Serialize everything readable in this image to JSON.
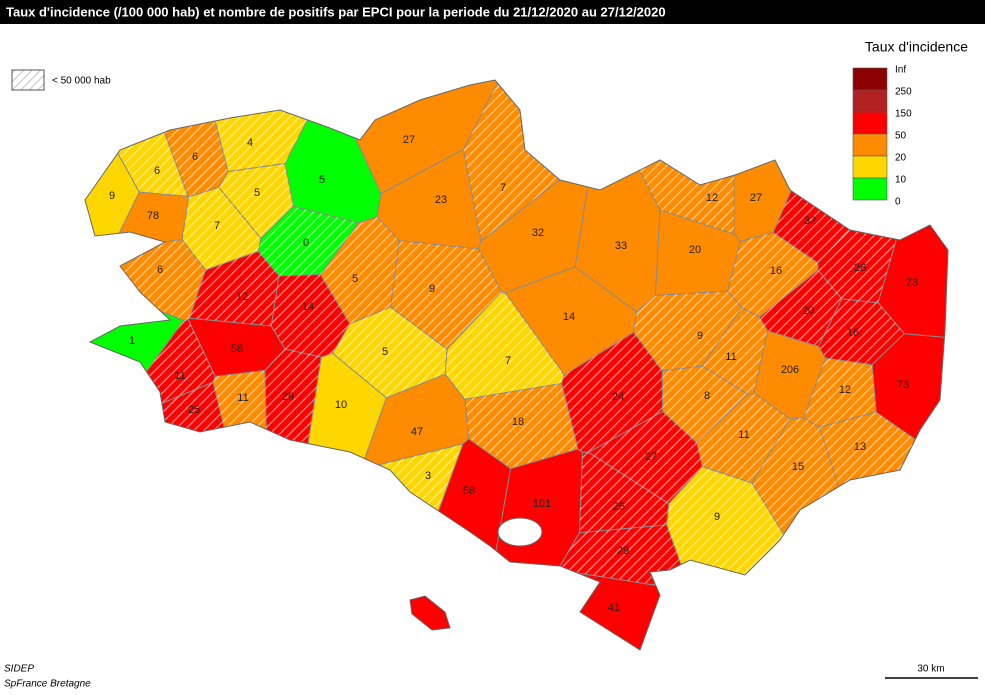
{
  "header": {
    "title": "Taux d'incidence (/100 000 hab) et nombre de positifs par EPCI pour la periode du 21/12/2020 au 27/12/2020"
  },
  "legend": {
    "title": "Taux d'incidence",
    "hatch_label": "< 50 000 hab",
    "breaks": [
      "Inf",
      "250",
      "150",
      "50",
      "20",
      "10",
      "0"
    ],
    "colors": [
      "#8b0000",
      "#b22222",
      "#ff0000",
      "#ff8c00",
      "#ffd700",
      "#00ff00"
    ]
  },
  "regions": [
    {
      "value": 27,
      "color": "#ff8c00",
      "hatched": false
    },
    {
      "value": 23,
      "color": "#ff8c00",
      "hatched": false
    },
    {
      "value": 7,
      "color": "#ff8c00",
      "hatched": true
    },
    {
      "value": 32,
      "color": "#ff8c00",
      "hatched": false
    },
    {
      "value": 33,
      "color": "#ff8c00",
      "hatched": false
    },
    {
      "value": 20,
      "color": "#ff8c00",
      "hatched": false
    },
    {
      "value": 27,
      "color": "#ff8c00",
      "hatched": false
    },
    {
      "value": 12,
      "color": "#ff8c00",
      "hatched": true
    },
    {
      "value": 32,
      "color": "#ff0000",
      "hatched": true
    },
    {
      "value": 26,
      "color": "#ff0000",
      "hatched": true
    },
    {
      "value": 73,
      "color": "#ff0000",
      "hatched": false
    },
    {
      "value": 16,
      "color": "#ff8c00",
      "hatched": true
    },
    {
      "value": 20,
      "color": "#ff0000",
      "hatched": true
    },
    {
      "value": 16,
      "color": "#ff0000",
      "hatched": true
    },
    {
      "value": 73,
      "color": "#ff0000",
      "hatched": false
    },
    {
      "value": 9,
      "color": "#ff8c00",
      "hatched": true
    },
    {
      "value": 14,
      "color": "#ff8c00",
      "hatched": false
    },
    {
      "value": 5,
      "color": "#ff8c00",
      "hatched": true
    },
    {
      "value": 5,
      "color": "#ffd700",
      "hatched": true
    },
    {
      "value": 7,
      "color": "#ffd700",
      "hatched": true
    },
    {
      "value": 9,
      "color": "#ff8c00",
      "hatched": true
    },
    {
      "value": 11,
      "color": "#ff8c00",
      "hatched": true
    },
    {
      "value": 206,
      "color": "#ff8c00",
      "hatched": false
    },
    {
      "value": 8,
      "color": "#ff8c00",
      "hatched": true
    },
    {
      "value": 12,
      "color": "#ff8c00",
      "hatched": true
    },
    {
      "value": 11,
      "color": "#ff8c00",
      "hatched": true
    },
    {
      "value": 13,
      "color": "#ff8c00",
      "hatched": true
    },
    {
      "value": 15,
      "color": "#ff8c00",
      "hatched": true
    },
    {
      "value": 24,
      "color": "#ff0000",
      "hatched": true
    },
    {
      "value": 27,
      "color": "#ff0000",
      "hatched": true
    },
    {
      "value": 18,
      "color": "#ff8c00",
      "hatched": true
    },
    {
      "value": 47,
      "color": "#ff8c00",
      "hatched": false
    },
    {
      "value": 10,
      "color": "#ffd700",
      "hatched": false
    },
    {
      "value": 3,
      "color": "#ffd700",
      "hatched": true
    },
    {
      "value": 58,
      "color": "#ff0000",
      "hatched": false
    },
    {
      "value": 101,
      "color": "#ff0000",
      "hatched": false
    },
    {
      "value": 25,
      "color": "#ff0000",
      "hatched": true
    },
    {
      "value": 29,
      "color": "#ff0000",
      "hatched": true
    },
    {
      "value": 41,
      "color": "#ff0000",
      "hatched": false
    },
    {
      "value": 9,
      "color": "#ffd700",
      "hatched": true
    },
    {
      "value": 5,
      "color": "#00ff00",
      "hatched": false
    },
    {
      "value": 0,
      "color": "#00ff00",
      "hatched": true
    },
    {
      "value": 4,
      "color": "#ffd700",
      "hatched": true
    },
    {
      "value": 5,
      "color": "#ffd700",
      "hatched": true
    },
    {
      "value": 6,
      "color": "#ff8c00",
      "hatched": true
    },
    {
      "value": 6,
      "color": "#ffd700",
      "hatched": true
    },
    {
      "value": 9,
      "color": "#ffd700",
      "hatched": false
    },
    {
      "value": 78,
      "color": "#ff8c00",
      "hatched": false
    },
    {
      "value": 7,
      "color": "#ffd700",
      "hatched": true
    },
    {
      "value": 6,
      "color": "#ff8c00",
      "hatched": true
    },
    {
      "value": 12,
      "color": "#ff0000",
      "hatched": true
    },
    {
      "value": 14,
      "color": "#ff0000",
      "hatched": true
    },
    {
      "value": 1,
      "color": "#00ff00",
      "hatched": false
    },
    {
      "value": 58,
      "color": "#ff0000",
      "hatched": false
    },
    {
      "value": 11,
      "color": "#ff0000",
      "hatched": true
    },
    {
      "value": 25,
      "color": "#ff0000",
      "hatched": true
    },
    {
      "value": 11,
      "color": "#ff8c00",
      "hatched": true
    },
    {
      "value": 29,
      "color": "#ff0000",
      "hatched": true
    }
  ],
  "footer": {
    "source": "SIDEP",
    "author": "SpFrance Bretagne",
    "scale": "30 km"
  }
}
